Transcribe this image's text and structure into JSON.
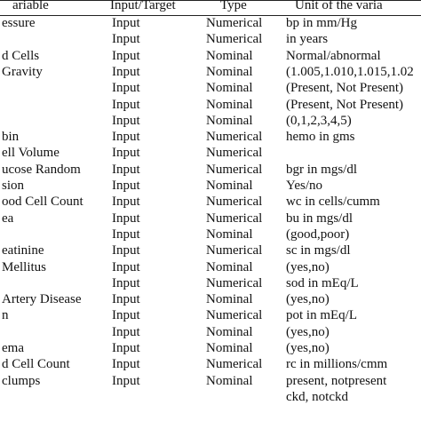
{
  "table": {
    "header": [
      "ariable",
      "Input/Target",
      "Type",
      "Unit of the varia"
    ],
    "rows": [
      [
        "essure",
        "Input",
        "Numerical",
        "bp in mm/Hg"
      ],
      [
        null,
        "Input",
        "Numerical",
        "in years"
      ],
      [
        "d Cells",
        "Input",
        "Nominal",
        "Normal/abnormal"
      ],
      [
        "Gravity",
        "Input",
        "Nominal",
        "(1.005,1.010,1.015,1.02"
      ],
      [
        null,
        "Input",
        "Nominal",
        "(Present, Not Present)"
      ],
      [
        null,
        "Input",
        "Nominal",
        "(Present, Not Present)"
      ],
      [
        null,
        "Input",
        "Nominal",
        "(0,1,2,3,4,5)"
      ],
      [
        "bin",
        "Input",
        "Numerical",
        "hemo in gms"
      ],
      [
        "ell Volume",
        "Input",
        "Numerical",
        null
      ],
      [
        "ucose Random",
        "Input",
        "Numerical",
        "bgr in mgs/dl"
      ],
      [
        "sion",
        "Input",
        "Nominal",
        "Yes/no"
      ],
      [
        "ood Cell Count",
        "Input",
        "Numerical",
        "wc in cells/cumm"
      ],
      [
        "ea",
        "Input",
        "Numerical",
        "bu in mgs/dl"
      ],
      [
        null,
        "Input",
        "Nominal",
        "(good,poor)"
      ],
      [
        "eatinine",
        "Input",
        "Numerical",
        "sc in mgs/dl"
      ],
      [
        "Mellitus",
        "Input",
        "Nominal",
        "(yes,no)"
      ],
      [
        null,
        "Input",
        "Numerical",
        "sod in mEq/L"
      ],
      [
        "Artery Disease",
        "Input",
        "Nominal",
        "(yes,no)"
      ],
      [
        "n",
        "Input",
        "Numerical",
        "pot in mEq/L"
      ],
      [
        null,
        "Input",
        "Nominal",
        "(yes,no)"
      ],
      [
        "ema",
        "Input",
        "Nominal",
        "(yes,no)"
      ],
      [
        "d Cell Count",
        "Input",
        "Numerical",
        "rc in millions/cmm"
      ],
      [
        "clumps",
        "Input",
        "Nominal",
        "present, notpresent"
      ],
      [
        null,
        null,
        null,
        "ckd, notckd"
      ]
    ]
  }
}
